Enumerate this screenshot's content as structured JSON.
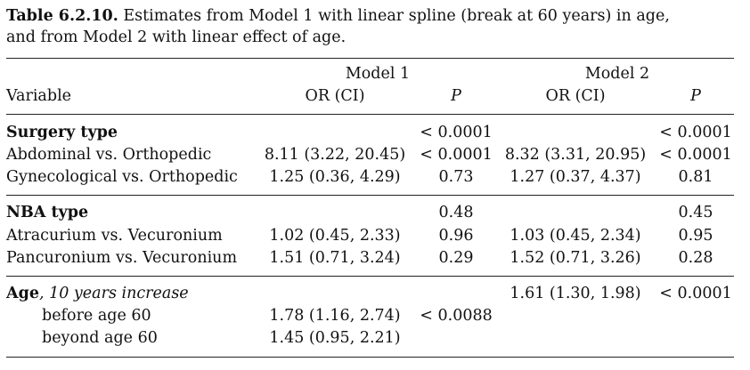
{
  "caption": {
    "label": "Table 6.2.10.",
    "text_line1": " Estimates from Model 1 with linear spline (break at 60 years) in age,",
    "text_line2": "and from Model 2 with linear effect of age."
  },
  "header": {
    "model1": "Model 1",
    "model2": "Model 2",
    "variable": "Variable",
    "or_ci": "OR (CI)",
    "p": "P"
  },
  "rows": {
    "surgery_type": {
      "label": "Surgery type",
      "m1_p": "< 0.0001",
      "m2_p": "< 0.0001"
    },
    "abdominal": {
      "label": "Abdominal vs. Orthopedic",
      "m1_or": "8.11 (3.22, 20.45)",
      "m1_p": "< 0.0001",
      "m2_or": "8.32 (3.31, 20.95)",
      "m2_p": "< 0.0001"
    },
    "gynecological": {
      "label": "Gynecological vs. Orthopedic",
      "m1_or": "1.25 (0.36, 4.29)",
      "m1_p": "0.73",
      "m2_or": "1.27 (0.37, 4.37)",
      "m2_p": "0.81"
    },
    "nba_type": {
      "label": "NBA type",
      "m1_p": "0.48",
      "m2_p": "0.45"
    },
    "atracurium": {
      "label": "Atracurium vs. Vecuronium",
      "m1_or": "1.02 (0.45, 2.33)",
      "m1_p": "0.96",
      "m2_or": "1.03 (0.45, 2.34)",
      "m2_p": "0.95"
    },
    "pancuronium": {
      "label": "Pancuronium vs. Vecuronium",
      "m1_or": "1.51 (0.71, 3.24)",
      "m1_p": "0.29",
      "m2_or": "1.52 (0.71, 3.26)",
      "m2_p": "0.28"
    },
    "age": {
      "label": "Age",
      "label_suffix": ", 10 years increase",
      "m2_or": "1.61 (1.30, 1.98)",
      "m2_p": "< 0.0001"
    },
    "before60": {
      "label": "before age 60",
      "m1_or": "1.78 (1.16, 2.74)",
      "m1_p": "< 0.0088"
    },
    "beyond60": {
      "label": "beyond age 60",
      "m1_or": "1.45 (0.95, 2.21)"
    }
  }
}
